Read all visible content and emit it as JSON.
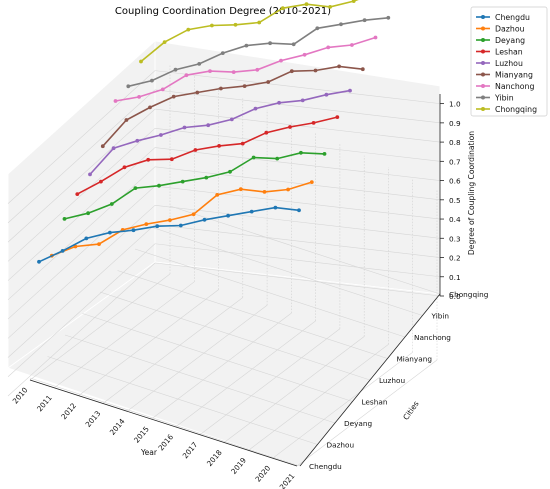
{
  "chart_data": {
    "type": "line",
    "projection": "3d",
    "title": "Coupling Coordination Degree (2010-2021)",
    "xlabel": "Year",
    "ylabel": "Cities",
    "zlabel": "Degree of Coupling Coordination",
    "x": [
      "2010",
      "2011",
      "2012",
      "2013",
      "2014",
      "2015",
      "2016",
      "2017",
      "2018",
      "2019",
      "2020",
      "2021"
    ],
    "z_ticks": [
      "0.0",
      "0.1",
      "0.2",
      "0.3",
      "0.4",
      "0.5",
      "0.6",
      "0.7",
      "0.8",
      "0.9",
      "1.0"
    ],
    "zlim": [
      0,
      1.05
    ],
    "grid": true,
    "legend_position": "top-right",
    "series": [
      {
        "name": "Chengdu",
        "color": "#1f77b4",
        "values": [
          0.16,
          0.21,
          0.27,
          0.29,
          0.29,
          0.3,
          0.29,
          0.31,
          0.32,
          0.33,
          0.34,
          0.31
        ]
      },
      {
        "name": "Dazhou",
        "color": "#ff7f0e",
        "values": [
          0.11,
          0.15,
          0.15,
          0.22,
          0.24,
          0.25,
          0.27,
          0.37,
          0.39,
          0.36,
          0.36,
          0.39
        ]
      },
      {
        "name": "Deyang",
        "color": "#2ca02c",
        "values": [
          0.24,
          0.26,
          0.3,
          0.38,
          0.38,
          0.39,
          0.4,
          0.42,
          0.49,
          0.47,
          0.49,
          0.47
        ]
      },
      {
        "name": "Leshan",
        "color": "#d62728",
        "values": [
          0.3,
          0.36,
          0.43,
          0.46,
          0.45,
          0.49,
          0.5,
          0.5,
          0.55,
          0.57,
          0.58,
          0.6
        ]
      },
      {
        "name": "Luzhou",
        "color": "#9467bd",
        "values": [
          0.33,
          0.47,
          0.5,
          0.52,
          0.55,
          0.55,
          0.57,
          0.62,
          0.64,
          0.64,
          0.66,
          0.67
        ]
      },
      {
        "name": "Mianyang",
        "color": "#8c564b",
        "values": [
          0.41,
          0.55,
          0.61,
          0.66,
          0.67,
          0.68,
          0.68,
          0.69,
          0.74,
          0.73,
          0.74,
          0.71
        ]
      },
      {
        "name": "Nanchong",
        "color": "#e377c2",
        "values": [
          0.59,
          0.6,
          0.63,
          0.7,
          0.71,
          0.69,
          0.69,
          0.73,
          0.75,
          0.78,
          0.78,
          0.81
        ]
      },
      {
        "name": "Yibin",
        "color": "#7f7f7f",
        "values": [
          0.59,
          0.61,
          0.66,
          0.68,
          0.73,
          0.76,
          0.76,
          0.74,
          0.82,
          0.83,
          0.84,
          0.84
        ]
      },
      {
        "name": "Chongqing",
        "color": "#bcbd22",
        "values": [
          0.65,
          0.75,
          0.81,
          0.82,
          0.81,
          0.81,
          0.88,
          0.89,
          0.86,
          0.88,
          0.92,
          0.95
        ]
      }
    ]
  }
}
